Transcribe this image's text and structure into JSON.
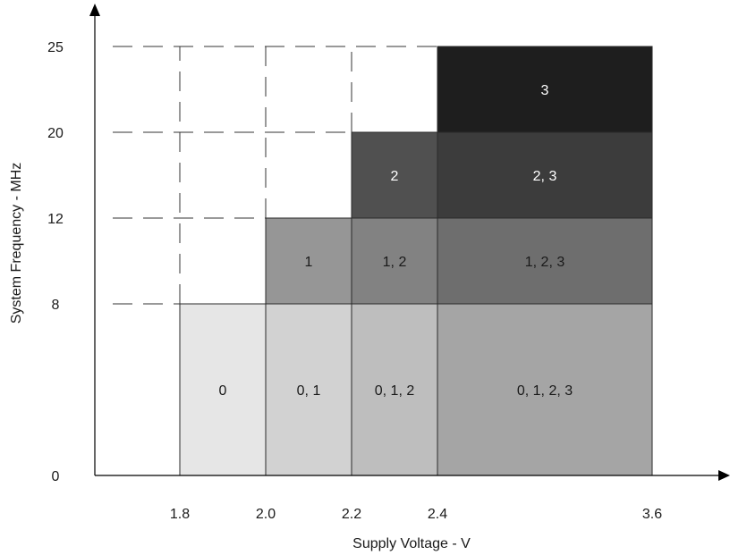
{
  "chart_data": {
    "type": "heatmap",
    "title": "",
    "xlabel": "Supply Voltage - V",
    "ylabel": "System Frequency - MHz",
    "x_ticks": [
      {
        "value": 1.8,
        "label": "1.8"
      },
      {
        "value": 2.0,
        "label": "2.0"
      },
      {
        "value": 2.2,
        "label": "2.2"
      },
      {
        "value": 2.4,
        "label": "2.4"
      },
      {
        "value": 3.6,
        "label": "3.6"
      }
    ],
    "y_ticks": [
      {
        "value": 0,
        "label": "0"
      },
      {
        "value": 8,
        "label": "8"
      },
      {
        "value": 12,
        "label": "12"
      },
      {
        "value": 20,
        "label": "20"
      },
      {
        "value": 25,
        "label": "25"
      }
    ],
    "grid": "dashed reference lines",
    "regions": [
      {
        "label": "0",
        "x": [
          1.8,
          2.0
        ],
        "y": [
          0,
          8
        ],
        "color": "#e6e6e6"
      },
      {
        "label": "0, 1",
        "x": [
          2.0,
          2.2
        ],
        "y": [
          0,
          8
        ],
        "color": "#d2d2d2"
      },
      {
        "label": "0, 1, 2",
        "x": [
          2.2,
          2.4
        ],
        "y": [
          0,
          8
        ],
        "color": "#bebebe"
      },
      {
        "label": "0, 1, 2, 3",
        "x": [
          2.4,
          3.6
        ],
        "y": [
          0,
          8
        ],
        "color": "#a5a5a5"
      },
      {
        "label": "1",
        "x": [
          2.0,
          2.2
        ],
        "y": [
          8,
          12
        ],
        "color": "#969696"
      },
      {
        "label": "1, 2",
        "x": [
          2.2,
          2.4
        ],
        "y": [
          8,
          12
        ],
        "color": "#828282"
      },
      {
        "label": "1, 2, 3",
        "x": [
          2.4,
          3.6
        ],
        "y": [
          8,
          12
        ],
        "color": "#6e6e6e"
      },
      {
        "label": "2",
        "x": [
          2.2,
          2.4
        ],
        "y": [
          12,
          20
        ],
        "color": "#505050"
      },
      {
        "label": "2, 3",
        "x": [
          2.4,
          3.6
        ],
        "y": [
          12,
          20
        ],
        "color": "#3c3c3c"
      },
      {
        "label": "3",
        "x": [
          2.4,
          3.6
        ],
        "y": [
          20,
          25
        ],
        "color": "#1e1e1e"
      }
    ]
  }
}
